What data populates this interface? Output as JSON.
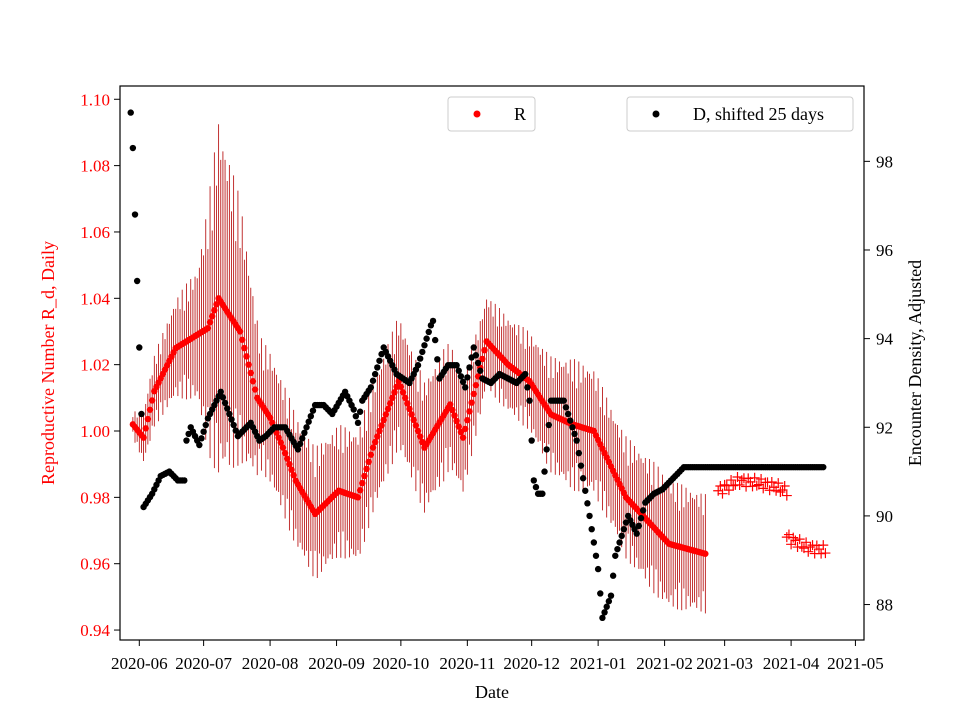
{
  "chart_data": {
    "type": "scatter",
    "title": "",
    "xlabel": "Date",
    "ylabel_left": "Reproductive Number R_d, Daily",
    "ylabel_right": "Encounter Density, Adjusted",
    "x_range": [
      "2020-05-23",
      "2021-05-05"
    ],
    "ylim_left": [
      0.937,
      1.104
    ],
    "ylim_right": [
      87.2,
      99.7
    ],
    "x_ticks": [
      "2020-06",
      "2020-07",
      "2020-08",
      "2020-09",
      "2020-10",
      "2020-11",
      "2020-12",
      "2021-01",
      "2021-02",
      "2021-03",
      "2021-04",
      "2021-05"
    ],
    "y_ticks_left": [
      "0.94",
      "0.96",
      "0.98",
      "1.00",
      "1.02",
      "1.04",
      "1.06",
      "1.08",
      "1.10"
    ],
    "y_ticks_right": [
      "88",
      "90",
      "92",
      "94",
      "96",
      "98"
    ],
    "colors": {
      "r_series": "#ff0000",
      "r_errorbar": "#b30000",
      "d_series": "#000000",
      "left_axis": "#ff0000"
    },
    "legend": [
      {
        "label": "R",
        "position": "top-center"
      },
      {
        "label": "D, shifted 25 days",
        "position": "top-right"
      }
    ],
    "series_r": {
      "name": "R",
      "axis": "left",
      "marker": "dot",
      "start_date": "2020-05-29",
      "end_date": "2021-02-20",
      "knots": [
        [
          0,
          1.002
        ],
        [
          5,
          0.998
        ],
        [
          10,
          1.012
        ],
        [
          20,
          1.025
        ],
        [
          35,
          1.031
        ],
        [
          40,
          1.04
        ],
        [
          50,
          1.03
        ],
        [
          58,
          1.01
        ],
        [
          64,
          1.004
        ],
        [
          70,
          0.995
        ],
        [
          76,
          0.985
        ],
        [
          85,
          0.975
        ],
        [
          96,
          0.982
        ],
        [
          105,
          0.98
        ],
        [
          112,
          0.995
        ],
        [
          124,
          1.015
        ],
        [
          136,
          0.995
        ],
        [
          148,
          1.008
        ],
        [
          154,
          0.998
        ],
        [
          165,
          1.027
        ],
        [
          175,
          1.02
        ],
        [
          185,
          1.015
        ],
        [
          195,
          1.005
        ],
        [
          205,
          1.002
        ],
        [
          215,
          1.0
        ],
        [
          230,
          0.98
        ],
        [
          250,
          0.966
        ],
        [
          267,
          0.963
        ]
      ],
      "error_half_width": [
        [
          0,
          0.004
        ],
        [
          8,
          0.01
        ],
        [
          20,
          0.015
        ],
        [
          30,
          0.02
        ],
        [
          40,
          0.055
        ],
        [
          50,
          0.04
        ],
        [
          60,
          0.02
        ],
        [
          80,
          0.02
        ],
        [
          105,
          0.02
        ],
        [
          125,
          0.02
        ],
        [
          145,
          0.02
        ],
        [
          165,
          0.014
        ],
        [
          185,
          0.015
        ],
        [
          205,
          0.02
        ],
        [
          225,
          0.018
        ],
        [
          245,
          0.02
        ],
        [
          267,
          0.018
        ]
      ]
    },
    "series_r_forecast": {
      "name": "R forecast",
      "axis": "left",
      "marker": "plus",
      "segments": [
        {
          "start_date": "2021-02-26",
          "end_date": "2021-03-30",
          "knots": [
            [
              0,
              0.982
            ],
            [
              10,
              0.985
            ],
            [
              22,
              0.984
            ],
            [
              32,
              0.982
            ]
          ]
        },
        {
          "start_date": "2021-03-30",
          "end_date": "2021-04-17",
          "knots": [
            [
              0,
              0.968
            ],
            [
              9,
              0.965
            ],
            [
              18,
              0.964
            ]
          ]
        }
      ]
    },
    "series_d": {
      "name": "D, shifted 25 days",
      "axis": "right",
      "marker": "dot",
      "start_date": "2020-05-28",
      "end_date": "2021-04-16",
      "knots": [
        [
          0,
          99.1
        ],
        [
          1,
          98.3
        ],
        [
          2,
          96.8
        ],
        [
          3,
          95.3
        ],
        [
          4,
          93.8
        ],
        [
          5,
          92.3
        ],
        [
          6,
          90.2
        ],
        [
          10,
          90.5
        ],
        [
          14,
          90.9
        ],
        [
          18,
          91.0
        ],
        [
          22,
          90.8
        ],
        [
          25,
          90.8
        ],
        [
          26,
          91.7
        ],
        [
          28,
          92.0
        ],
        [
          32,
          91.6
        ],
        [
          36,
          92.2
        ],
        [
          42,
          92.8
        ],
        [
          50,
          91.8
        ],
        [
          56,
          92.1
        ],
        [
          60,
          91.7
        ],
        [
          63,
          91.8
        ],
        [
          67,
          92.0
        ],
        [
          72,
          92.0
        ],
        [
          78,
          91.5
        ],
        [
          82,
          92.0
        ],
        [
          86,
          92.5
        ],
        [
          90,
          92.5
        ],
        [
          94,
          92.3
        ],
        [
          100,
          92.8
        ],
        [
          104,
          92.4
        ],
        [
          106,
          92.1
        ],
        [
          108,
          92.6
        ],
        [
          112,
          92.9
        ],
        [
          118,
          93.8
        ],
        [
          124,
          93.2
        ],
        [
          130,
          93.0
        ],
        [
          134,
          93.4
        ],
        [
          140,
          94.3
        ],
        [
          141,
          94.4
        ],
        [
          144,
          93.1
        ],
        [
          148,
          93.4
        ],
        [
          152,
          93.4
        ],
        [
          156,
          92.9
        ],
        [
          160,
          93.8
        ],
        [
          164,
          93.1
        ],
        [
          168,
          93.0
        ],
        [
          172,
          93.2
        ],
        [
          180,
          93.0
        ],
        [
          184,
          93.2
        ],
        [
          186,
          92.6
        ],
        [
          188,
          90.8
        ],
        [
          190,
          90.5
        ],
        [
          192,
          90.5
        ],
        [
          194,
          91.5
        ],
        [
          196,
          92.6
        ],
        [
          202,
          92.6
        ],
        [
          208,
          91.7
        ],
        [
          214,
          90.0
        ],
        [
          218,
          88.8
        ],
        [
          220,
          87.7
        ],
        [
          224,
          88.2
        ],
        [
          226,
          89.1
        ],
        [
          232,
          90.0
        ],
        [
          236,
          89.6
        ],
        [
          240,
          90.3
        ],
        [
          244,
          90.5
        ],
        [
          248,
          90.6
        ],
        [
          252,
          90.8
        ],
        [
          258,
          91.1
        ],
        [
          324,
          91.1
        ]
      ]
    }
  }
}
